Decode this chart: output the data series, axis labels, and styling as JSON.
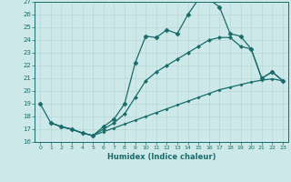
{
  "xlabel": "Humidex (Indice chaleur)",
  "ylabel": "",
  "bg_color": "#cce8e8",
  "line_color": "#1a6b6b",
  "grid_color": "#b8d8d8",
  "xlim": [
    -0.5,
    23.5
  ],
  "ylim": [
    16,
    27
  ],
  "yticks": [
    16,
    17,
    18,
    19,
    20,
    21,
    22,
    23,
    24,
    25,
    26,
    27
  ],
  "xticks": [
    0,
    1,
    2,
    3,
    4,
    5,
    6,
    7,
    8,
    9,
    10,
    11,
    12,
    13,
    14,
    15,
    16,
    17,
    18,
    19,
    20,
    21,
    22,
    23
  ],
  "line1_x": [
    0,
    1,
    2,
    3,
    4,
    5,
    6,
    7,
    8,
    9,
    10,
    11,
    12,
    13,
    14,
    15,
    16,
    17,
    18,
    19,
    20,
    21,
    22,
    23
  ],
  "line1_y": [
    19,
    17.5,
    17.2,
    17.0,
    16.7,
    16.5,
    17.2,
    17.8,
    19.0,
    22.2,
    24.3,
    24.2,
    24.8,
    24.5,
    26.0,
    27.2,
    27.2,
    26.6,
    24.5,
    24.3,
    23.3,
    21.0,
    21.5,
    20.8
  ],
  "line2_x": [
    1,
    2,
    3,
    4,
    5,
    6,
    7,
    8,
    9,
    10,
    11,
    12,
    13,
    14,
    15,
    16,
    17,
    18,
    19,
    20,
    21,
    22,
    23
  ],
  "line2_y": [
    17.5,
    17.2,
    17.0,
    16.7,
    16.5,
    17.0,
    17.5,
    18.2,
    19.5,
    20.8,
    21.5,
    22.0,
    22.5,
    23.0,
    23.5,
    24.0,
    24.2,
    24.2,
    23.5,
    23.3,
    21.0,
    21.5,
    20.8
  ],
  "line3_x": [
    1,
    2,
    3,
    4,
    5,
    6,
    7,
    8,
    9,
    10,
    11,
    12,
    13,
    14,
    15,
    16,
    17,
    18,
    19,
    20,
    21,
    22,
    23
  ],
  "line3_y": [
    17.5,
    17.2,
    17.0,
    16.7,
    16.5,
    16.8,
    17.1,
    17.4,
    17.7,
    18.0,
    18.3,
    18.6,
    18.9,
    19.2,
    19.5,
    19.8,
    20.1,
    20.3,
    20.5,
    20.7,
    20.85,
    20.95,
    20.8
  ]
}
